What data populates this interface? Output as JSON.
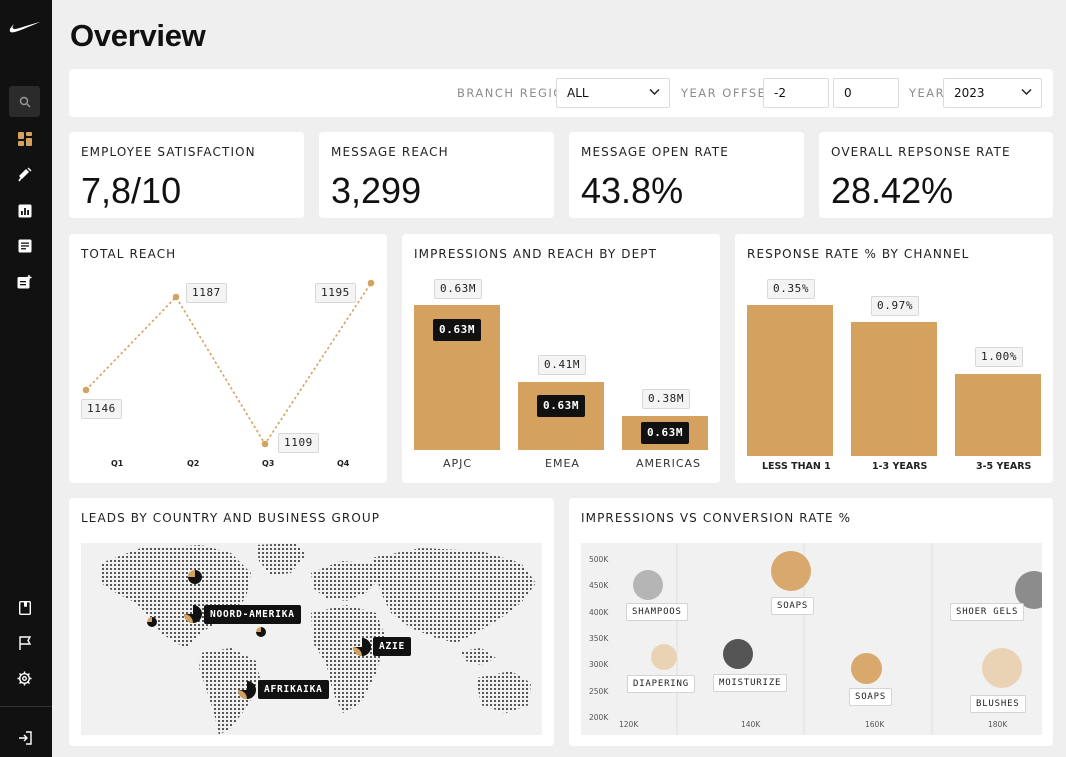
{
  "page": {
    "title": "Overview"
  },
  "sidebar": {
    "items": [
      {
        "icon": "search-icon",
        "active": true
      },
      {
        "icon": "dashboard-icon",
        "accent": "#d4a15f"
      },
      {
        "icon": "campaign-icon"
      },
      {
        "icon": "analytics-icon"
      },
      {
        "icon": "articles-icon"
      },
      {
        "icon": "new-post-icon"
      }
    ],
    "bottom_items": [
      {
        "icon": "book-icon"
      },
      {
        "icon": "flag-icon"
      },
      {
        "icon": "settings-icon"
      },
      {
        "icon": "logout-icon"
      }
    ]
  },
  "filters": {
    "branch_region_label": "BRANCH REGION",
    "branch_region_value": "ALL",
    "year_offset_label": "YEAR OFFSET",
    "year_offset_from": "-2",
    "year_offset_to": "0",
    "year_label": "YEAR",
    "year_value": "2023"
  },
  "kpis": [
    {
      "label": "EMPLOYEE SATISFACTION",
      "value": "7,8/10"
    },
    {
      "label": "MESSAGE REACH",
      "value": "3,299"
    },
    {
      "label": "MESSAGE OPEN RATE",
      "value": "43.8%"
    },
    {
      "label": "OVERALL REPSONSE RATE",
      "value": "28.42%"
    }
  ],
  "total_reach": {
    "title": "TOTAL REACH",
    "chart_data": {
      "type": "line",
      "categories": [
        "Q1",
        "Q2",
        "Q3",
        "Q4"
      ],
      "points": [
        {
          "label": "Q1",
          "value": 1146,
          "tag": "1146"
        },
        {
          "label": "Q2",
          "value": 1187,
          "tag": "1187"
        },
        {
          "label": "Q3",
          "value": 1109,
          "tag": "1109"
        },
        {
          "label": "Q4",
          "value": 1195,
          "tag": "1195"
        }
      ]
    }
  },
  "impressions_reach": {
    "title": "IMPRESSIONS AND REACH BY DEPT",
    "chart_data": {
      "type": "bar",
      "categories": [
        "APJC",
        "EMEA",
        "AMERICAS"
      ],
      "series": [
        {
          "values": [
            0.63,
            0.41,
            0.38
          ],
          "labels": [
            "0.63M",
            "0.41M",
            "0.38M"
          ]
        },
        {
          "values": [
            0.63,
            0.63,
            0.63
          ],
          "labels": [
            "0.63M",
            "0.63M",
            "0.63M"
          ]
        }
      ]
    }
  },
  "response_rate": {
    "title": "RESPONSE RATE % BY CHANNEL",
    "chart_data": {
      "type": "bar",
      "categories": [
        "LESS THAN 1",
        "1-3 YEARS",
        "3-5 YEARS"
      ],
      "values": [
        0.35,
        0.97,
        1.0
      ],
      "labels": [
        "0.35%",
        "0.97%",
        "1.00%"
      ]
    }
  },
  "leads_map": {
    "title": "LEADS BY COUNTRY AND BUSINESS GROUP",
    "regions": [
      "NOORD-AMERIKA",
      "AZIE",
      "AFRIKAIKA"
    ]
  },
  "impressions_conversion": {
    "title": "IMPRESSIONS VS CONVERSION RATE %",
    "chart_data": {
      "type": "scatter",
      "y_ticks": [
        "500K",
        "450K",
        "400K",
        "350K",
        "300K",
        "250K",
        "200K"
      ],
      "x_ticks": [
        "120K",
        "140K",
        "160K",
        "180K"
      ],
      "points": [
        {
          "label": "SHAMPOOS",
          "x": 124000,
          "y": 452000,
          "color": "#b5b5b5"
        },
        {
          "label": "SOAPS",
          "x": 145000,
          "y": 470000,
          "color": "#d9a86c"
        },
        {
          "label": "SHOER GELS",
          "x": 186000,
          "y": 430000,
          "color": "#8c8c8c"
        },
        {
          "label": "DIAPERING",
          "x": 126000,
          "y": 310000,
          "color": "#ead3b5"
        },
        {
          "label": "MOISTURIZE",
          "x": 141000,
          "y": 318000,
          "color": "#555555"
        },
        {
          "label": "SOAPS",
          "x": 163000,
          "y": 300000,
          "color": "#d9a86c"
        },
        {
          "label": "BLUSHES",
          "x": 183000,
          "y": 295000,
          "color": "#ead3b5"
        }
      ]
    }
  },
  "colors": {
    "accent": "#d4a15f",
    "dark": "#111111"
  }
}
